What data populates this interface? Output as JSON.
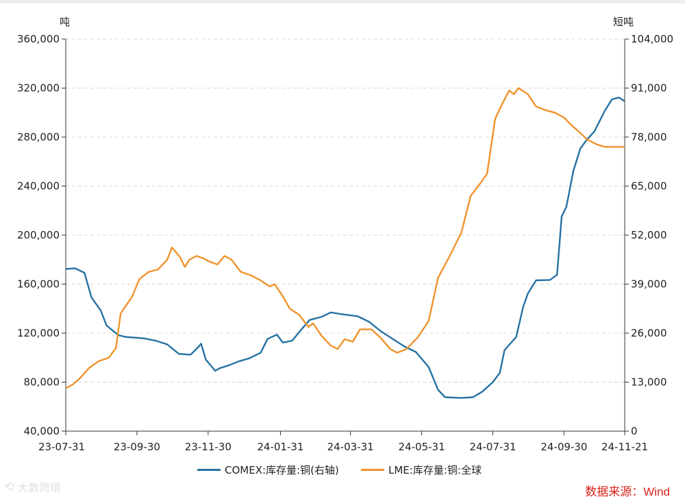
{
  "chart_data": {
    "type": "line",
    "left_axis_unit": "吨",
    "right_axis_unit": "短吨",
    "x_ticks": [
      "23-07-31",
      "23-09-30",
      "23-11-30",
      "24-01-31",
      "24-03-31",
      "24-05-31",
      "24-07-31",
      "24-09-30",
      "24-11-21"
    ],
    "y_left": {
      "min": 40000,
      "max": 360000,
      "ticks": [
        "40,000",
        "80,000",
        "120,000",
        "160,000",
        "200,000",
        "240,000",
        "280,000",
        "320,000",
        "360,000"
      ]
    },
    "y_right": {
      "min": 0,
      "max": 104000,
      "ticks": [
        "0",
        "13,000",
        "26,000",
        "39,000",
        "52,000",
        "65,000",
        "78,000",
        "91,000",
        "104,000"
      ]
    },
    "grid": true,
    "legend_position": "bottom",
    "series": [
      {
        "name": "COMEX:库存量:铜(右轴)",
        "axis": "right",
        "color": "#2471a3",
        "points": [
          [
            "2023-07-31",
            43000
          ],
          [
            "2023-08-08",
            43200
          ],
          [
            "2023-08-16",
            42000
          ],
          [
            "2023-08-22",
            35500
          ],
          [
            "2023-08-30",
            32000
          ],
          [
            "2023-09-04",
            28000
          ],
          [
            "2023-09-14",
            25500
          ],
          [
            "2023-09-20",
            25000
          ],
          [
            "2023-10-06",
            24600
          ],
          [
            "2023-10-16",
            24000
          ],
          [
            "2023-10-26",
            23000
          ],
          [
            "2023-11-05",
            20500
          ],
          [
            "2023-11-15",
            20300
          ],
          [
            "2023-11-20",
            21800
          ],
          [
            "2023-11-24",
            23200
          ],
          [
            "2023-11-28",
            19000
          ],
          [
            "2023-12-06",
            16000
          ],
          [
            "2023-12-10",
            16700
          ],
          [
            "2023-12-18",
            17500
          ],
          [
            "2023-12-26",
            18500
          ],
          [
            "2024-01-04",
            19300
          ],
          [
            "2024-01-14",
            20800
          ],
          [
            "2024-01-20",
            24500
          ],
          [
            "2024-01-28",
            25600
          ],
          [
            "2024-02-02",
            23500
          ],
          [
            "2024-02-10",
            24000
          ],
          [
            "2024-02-18",
            27000
          ],
          [
            "2024-02-25",
            29500
          ],
          [
            "2024-03-06",
            30300
          ],
          [
            "2024-03-14",
            31500
          ],
          [
            "2024-03-24",
            31000
          ],
          [
            "2024-04-06",
            30500
          ],
          [
            "2024-04-16",
            29000
          ],
          [
            "2024-04-26",
            26500
          ],
          [
            "2024-05-06",
            24500
          ],
          [
            "2024-05-16",
            22500
          ],
          [
            "2024-05-26",
            21000
          ],
          [
            "2024-06-06",
            17000
          ],
          [
            "2024-06-14",
            11000
          ],
          [
            "2024-06-20",
            9000
          ],
          [
            "2024-07-04",
            8800
          ],
          [
            "2024-07-14",
            9000
          ],
          [
            "2024-07-22",
            10500
          ],
          [
            "2024-07-31",
            13000
          ],
          [
            "2024-08-06",
            15500
          ],
          [
            "2024-08-10",
            21500
          ],
          [
            "2024-08-20",
            25000
          ],
          [
            "2024-08-26",
            33000
          ],
          [
            "2024-08-30",
            36500
          ],
          [
            "2024-09-06",
            40000
          ],
          [
            "2024-09-18",
            40100
          ],
          [
            "2024-09-24",
            41500
          ],
          [
            "2024-09-28",
            57000
          ],
          [
            "2024-10-02",
            59500
          ],
          [
            "2024-10-08",
            69000
          ],
          [
            "2024-10-14",
            75000
          ],
          [
            "2024-10-20",
            77500
          ],
          [
            "2024-10-26",
            79500
          ],
          [
            "2024-11-04",
            85000
          ],
          [
            "2024-11-10",
            88000
          ],
          [
            "2024-11-16",
            88500
          ],
          [
            "2024-11-21",
            87500
          ]
        ]
      },
      {
        "name": "LME:库存量:铜:全球",
        "axis": "left",
        "color": "#f0922b",
        "points": [
          [
            "2023-07-31",
            75000
          ],
          [
            "2023-08-06",
            78000
          ],
          [
            "2023-08-12",
            83000
          ],
          [
            "2023-08-20",
            91500
          ],
          [
            "2023-08-28",
            97000
          ],
          [
            "2023-09-06",
            100000
          ],
          [
            "2023-09-12",
            108000
          ],
          [
            "2023-09-16",
            136000
          ],
          [
            "2023-09-26",
            150000
          ],
          [
            "2023-10-02",
            164000
          ],
          [
            "2023-10-10",
            170000
          ],
          [
            "2023-10-18",
            172000
          ],
          [
            "2023-10-26",
            180000
          ],
          [
            "2023-10-30",
            190000
          ],
          [
            "2023-11-06",
            182000
          ],
          [
            "2023-11-10",
            174000
          ],
          [
            "2023-11-14",
            180000
          ],
          [
            "2023-11-20",
            183000
          ],
          [
            "2023-11-26",
            181000
          ],
          [
            "2023-12-02",
            178000
          ],
          [
            "2023-12-08",
            176000
          ],
          [
            "2023-12-14",
            183000
          ],
          [
            "2023-12-20",
            180000
          ],
          [
            "2023-12-28",
            170000
          ],
          [
            "2024-01-06",
            167000
          ],
          [
            "2024-01-14",
            163000
          ],
          [
            "2024-01-22",
            158000
          ],
          [
            "2024-01-26",
            160000
          ],
          [
            "2024-02-02",
            150000
          ],
          [
            "2024-02-08",
            140000
          ],
          [
            "2024-02-16",
            135000
          ],
          [
            "2024-02-24",
            125000
          ],
          [
            "2024-02-28",
            128000
          ],
          [
            "2024-03-06",
            118000
          ],
          [
            "2024-03-14",
            110000
          ],
          [
            "2024-03-20",
            107000
          ],
          [
            "2024-03-26",
            115000
          ],
          [
            "2024-04-02",
            113000
          ],
          [
            "2024-04-08",
            123000
          ],
          [
            "2024-04-18",
            123000
          ],
          [
            "2024-04-26",
            116000
          ],
          [
            "2024-05-04",
            107000
          ],
          [
            "2024-05-10",
            104000
          ],
          [
            "2024-05-18",
            107000
          ],
          [
            "2024-05-28",
            117000
          ],
          [
            "2024-06-06",
            130000
          ],
          [
            "2024-06-14",
            165000
          ],
          [
            "2024-06-24",
            183000
          ],
          [
            "2024-07-04",
            202000
          ],
          [
            "2024-07-12",
            232000
          ],
          [
            "2024-07-20",
            242000
          ],
          [
            "2024-07-26",
            250000
          ],
          [
            "2024-08-02",
            295000
          ],
          [
            "2024-08-08",
            307000
          ],
          [
            "2024-08-14",
            318000
          ],
          [
            "2024-08-18",
            315000
          ],
          [
            "2024-08-22",
            320000
          ],
          [
            "2024-08-30",
            315000
          ],
          [
            "2024-09-06",
            305000
          ],
          [
            "2024-09-14",
            302000
          ],
          [
            "2024-09-22",
            300000
          ],
          [
            "2024-09-30",
            296000
          ],
          [
            "2024-10-06",
            290000
          ],
          [
            "2024-10-12",
            285000
          ],
          [
            "2024-10-20",
            278000
          ],
          [
            "2024-10-28",
            274000
          ],
          [
            "2024-11-04",
            272000
          ],
          [
            "2024-11-14",
            272000
          ],
          [
            "2024-11-21",
            272000
          ]
        ]
      }
    ]
  },
  "legend": {
    "comex_label": "COMEX:库存量:铜(右轴)",
    "lme_label": "LME:库存量:铜:全球"
  },
  "source_text": "数据来源：Wind",
  "source_color": "#d9251c",
  "watermark_text": "大数跨境",
  "grid_color": "#d8d8d8",
  "axis_color": "#333333"
}
